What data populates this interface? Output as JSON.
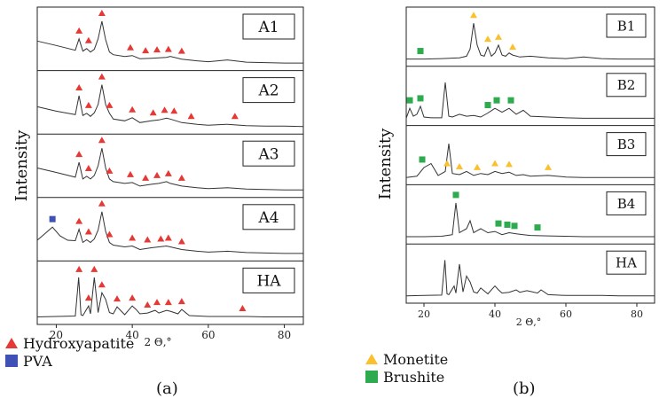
{
  "chart_data": [
    {
      "type": "line",
      "panel": "a",
      "ylabel": "Intensity",
      "xlabel": "2 Θ,°",
      "xlim": [
        15,
        85
      ],
      "xticks": [
        20,
        40,
        60,
        80
      ],
      "series": [
        {
          "name": "A1",
          "x": [
            15,
            20,
            25,
            26,
            27,
            28,
            29,
            30,
            31,
            32,
            33,
            34,
            35,
            38,
            40,
            42,
            45,
            47,
            49,
            50,
            53,
            57,
            60,
            65,
            70,
            75,
            80,
            85
          ],
          "y": [
            0.55,
            0.45,
            0.34,
            0.6,
            0.32,
            0.38,
            0.3,
            0.36,
            0.6,
            1.0,
            0.58,
            0.3,
            0.24,
            0.2,
            0.22,
            0.15,
            0.16,
            0.17,
            0.18,
            0.2,
            0.14,
            0.1,
            0.08,
            0.12,
            0.07,
            0.06,
            0.05,
            0.05
          ],
          "markers": {
            "Hydroxyapatite": [
              26,
              28.5,
              32,
              39.5,
              43.5,
              46.5,
              49.5,
              53
            ]
          }
        },
        {
          "name": "A2",
          "x": [
            15,
            20,
            25,
            26,
            27,
            28,
            29,
            30,
            31,
            32,
            33,
            34,
            35,
            38,
            40,
            42,
            45,
            47,
            49,
            50,
            53,
            57,
            60,
            65,
            70,
            75,
            80,
            85
          ],
          "y": [
            0.5,
            0.4,
            0.32,
            0.75,
            0.3,
            0.35,
            0.28,
            0.36,
            0.55,
            1.0,
            0.55,
            0.35,
            0.22,
            0.18,
            0.25,
            0.14,
            0.18,
            0.2,
            0.24,
            0.22,
            0.14,
            0.1,
            0.08,
            0.1,
            0.07,
            0.06,
            0.06,
            0.05
          ],
          "markers": {
            "Hydroxyapatite": [
              26,
              28.5,
              32,
              34,
              40,
              45.5,
              48.5,
              51,
              55.5,
              67
            ]
          }
        },
        {
          "name": "A3",
          "x": [
            15,
            20,
            25,
            26,
            27,
            28,
            29,
            30,
            31,
            32,
            33,
            34,
            35,
            38,
            40,
            42,
            45,
            47,
            49,
            50,
            53,
            57,
            60,
            65,
            70,
            75,
            80,
            85
          ],
          "y": [
            0.55,
            0.45,
            0.34,
            0.68,
            0.3,
            0.36,
            0.3,
            0.38,
            0.6,
            1.0,
            0.55,
            0.3,
            0.24,
            0.2,
            0.22,
            0.14,
            0.18,
            0.2,
            0.24,
            0.2,
            0.14,
            0.1,
            0.08,
            0.1,
            0.07,
            0.06,
            0.05,
            0.05
          ],
          "markers": {
            "Hydroxyapatite": [
              26,
              28.5,
              32,
              34,
              39.5,
              43.5,
              46.5,
              49.5,
              53
            ]
          }
        },
        {
          "name": "A4",
          "x": [
            15,
            17,
            19,
            21,
            23,
            25,
            26,
            27,
            28,
            29,
            30,
            31,
            32,
            33,
            34,
            35,
            38,
            40,
            42,
            45,
            47,
            49,
            50,
            53,
            57,
            60,
            65,
            70,
            75,
            80,
            85
          ],
          "y": [
            0.35,
            0.5,
            0.65,
            0.45,
            0.35,
            0.34,
            0.6,
            0.3,
            0.36,
            0.3,
            0.38,
            0.58,
            1.0,
            0.55,
            0.3,
            0.24,
            0.2,
            0.22,
            0.14,
            0.18,
            0.2,
            0.22,
            0.2,
            0.14,
            0.1,
            0.08,
            0.1,
            0.07,
            0.06,
            0.05,
            0.05
          ],
          "markers": {
            "PVA": [
              19
            ],
            "Hydroxyapatite": [
              26,
              28.5,
              32,
              34,
              40,
              44,
              47.5,
              49.5,
              53
            ]
          }
        },
        {
          "name": "HA",
          "x": [
            15,
            20,
            25,
            25.9,
            26.5,
            27,
            28.5,
            29,
            30,
            31,
            32,
            33,
            34,
            35,
            36,
            38,
            40,
            41,
            42,
            44,
            46,
            47,
            49,
            50,
            52,
            53,
            55,
            60,
            65,
            70,
            75,
            80,
            85
          ],
          "y": [
            0.05,
            0.06,
            0.07,
            0.95,
            0.1,
            0.08,
            0.3,
            0.12,
            0.95,
            0.15,
            0.6,
            0.45,
            0.15,
            0.12,
            0.28,
            0.1,
            0.3,
            0.22,
            0.12,
            0.14,
            0.2,
            0.14,
            0.2,
            0.18,
            0.12,
            0.22,
            0.08,
            0.06,
            0.06,
            0.06,
            0.05,
            0.05,
            0.05
          ],
          "markers": {
            "Hydroxyapatite": [
              26,
              28.5,
              30,
              32,
              36,
              40,
              44,
              46.5,
              49.5,
              53,
              69
            ]
          }
        }
      ],
      "legend": [
        {
          "label": "Hydroxyapatite",
          "color": "#e53935",
          "marker": "triangle"
        },
        {
          "label": "PVA",
          "color": "#3f51b5",
          "marker": "square"
        }
      ],
      "caption": "(a)"
    },
    {
      "type": "line",
      "panel": "b",
      "ylabel": "Intensity",
      "xlabel": "2 Θ,°",
      "xlim": [
        15,
        85
      ],
      "xticks": [
        20,
        40,
        60,
        80
      ],
      "series": [
        {
          "name": "B1",
          "x": [
            15,
            20,
            25,
            30,
            32,
            33,
            34,
            35,
            36,
            37,
            38,
            39,
            40,
            41,
            42,
            43,
            44,
            45,
            47,
            50,
            55,
            60,
            65,
            70,
            75,
            80,
            85
          ],
          "y": [
            0.05,
            0.05,
            0.06,
            0.08,
            0.12,
            0.3,
            0.95,
            0.4,
            0.15,
            0.12,
            0.35,
            0.12,
            0.2,
            0.4,
            0.15,
            0.12,
            0.2,
            0.15,
            0.1,
            0.12,
            0.08,
            0.06,
            0.1,
            0.06,
            0.05,
            0.05,
            0.05
          ],
          "markers": {
            "Monetite": [
              34,
              38,
              41,
              45
            ],
            "Brushite": [
              19
            ]
          }
        },
        {
          "name": "B2",
          "x": [
            15,
            16,
            17,
            18,
            19,
            20,
            22,
            25,
            26,
            27,
            28,
            30,
            32,
            34,
            36,
            38,
            40,
            42,
            44,
            46,
            48,
            50,
            55,
            60,
            65,
            70,
            75,
            80,
            85
          ],
          "y": [
            0.05,
            0.3,
            0.1,
            0.15,
            0.35,
            0.08,
            0.06,
            0.06,
            0.95,
            0.1,
            0.08,
            0.15,
            0.1,
            0.12,
            0.08,
            0.18,
            0.3,
            0.2,
            0.3,
            0.15,
            0.25,
            0.1,
            0.08,
            0.06,
            0.05,
            0.05,
            0.05,
            0.05,
            0.05
          ],
          "markers": {
            "Brushite": [
              16,
              19,
              38,
              40.5,
              44.5
            ]
          }
        },
        {
          "name": "B3",
          "x": [
            15,
            18,
            20,
            22,
            24,
            26,
            27,
            28,
            30,
            32,
            34,
            36,
            38,
            40,
            42,
            44,
            46,
            48,
            50,
            55,
            60,
            65,
            70,
            75,
            80,
            85
          ],
          "y": [
            0.05,
            0.08,
            0.3,
            0.4,
            0.1,
            0.2,
            0.9,
            0.15,
            0.12,
            0.2,
            0.1,
            0.15,
            0.12,
            0.2,
            0.15,
            0.18,
            0.1,
            0.12,
            0.08,
            0.1,
            0.06,
            0.05,
            0.05,
            0.05,
            0.05,
            0.05
          ],
          "markers": {
            "Monetite": [
              26.5,
              30,
              35,
              40,
              44,
              55
            ],
            "Brushite": [
              19.5
            ]
          }
        },
        {
          "name": "B4",
          "x": [
            15,
            20,
            25,
            28,
            29,
            30,
            31,
            32,
            33,
            34,
            35,
            36,
            38,
            40,
            42,
            44,
            46,
            48,
            50,
            55,
            60,
            65,
            70,
            75,
            80,
            85
          ],
          "y": [
            0.05,
            0.05,
            0.06,
            0.1,
            0.9,
            0.15,
            0.2,
            0.25,
            0.45,
            0.15,
            0.2,
            0.25,
            0.15,
            0.18,
            0.1,
            0.15,
            0.12,
            0.1,
            0.08,
            0.07,
            0.06,
            0.05,
            0.05,
            0.05,
            0.05,
            0.05
          ],
          "markers": {
            "Brushite": [
              29,
              41,
              43.5,
              45.5,
              52
            ]
          }
        },
        {
          "name": "HA",
          "x": [
            15,
            20,
            25,
            25.9,
            26.5,
            27,
            28.5,
            29,
            30,
            31,
            32,
            33,
            34,
            35,
            36,
            38,
            40,
            41,
            42,
            44,
            46,
            47,
            49,
            50,
            52,
            53,
            55,
            60,
            65,
            70,
            75,
            80,
            85
          ],
          "y": [
            0.05,
            0.06,
            0.07,
            0.95,
            0.1,
            0.08,
            0.3,
            0.12,
            0.85,
            0.15,
            0.55,
            0.4,
            0.15,
            0.12,
            0.25,
            0.1,
            0.3,
            0.2,
            0.12,
            0.14,
            0.2,
            0.14,
            0.18,
            0.16,
            0.12,
            0.2,
            0.08,
            0.06,
            0.06,
            0.06,
            0.05,
            0.05,
            0.05
          ],
          "markers": {}
        }
      ],
      "legend": [
        {
          "label": "Monetite",
          "color": "#fbc02d",
          "marker": "triangle"
        },
        {
          "label": "Brushite",
          "color": "#2eaa4f",
          "marker": "square"
        }
      ],
      "caption": "(b)"
    }
  ]
}
